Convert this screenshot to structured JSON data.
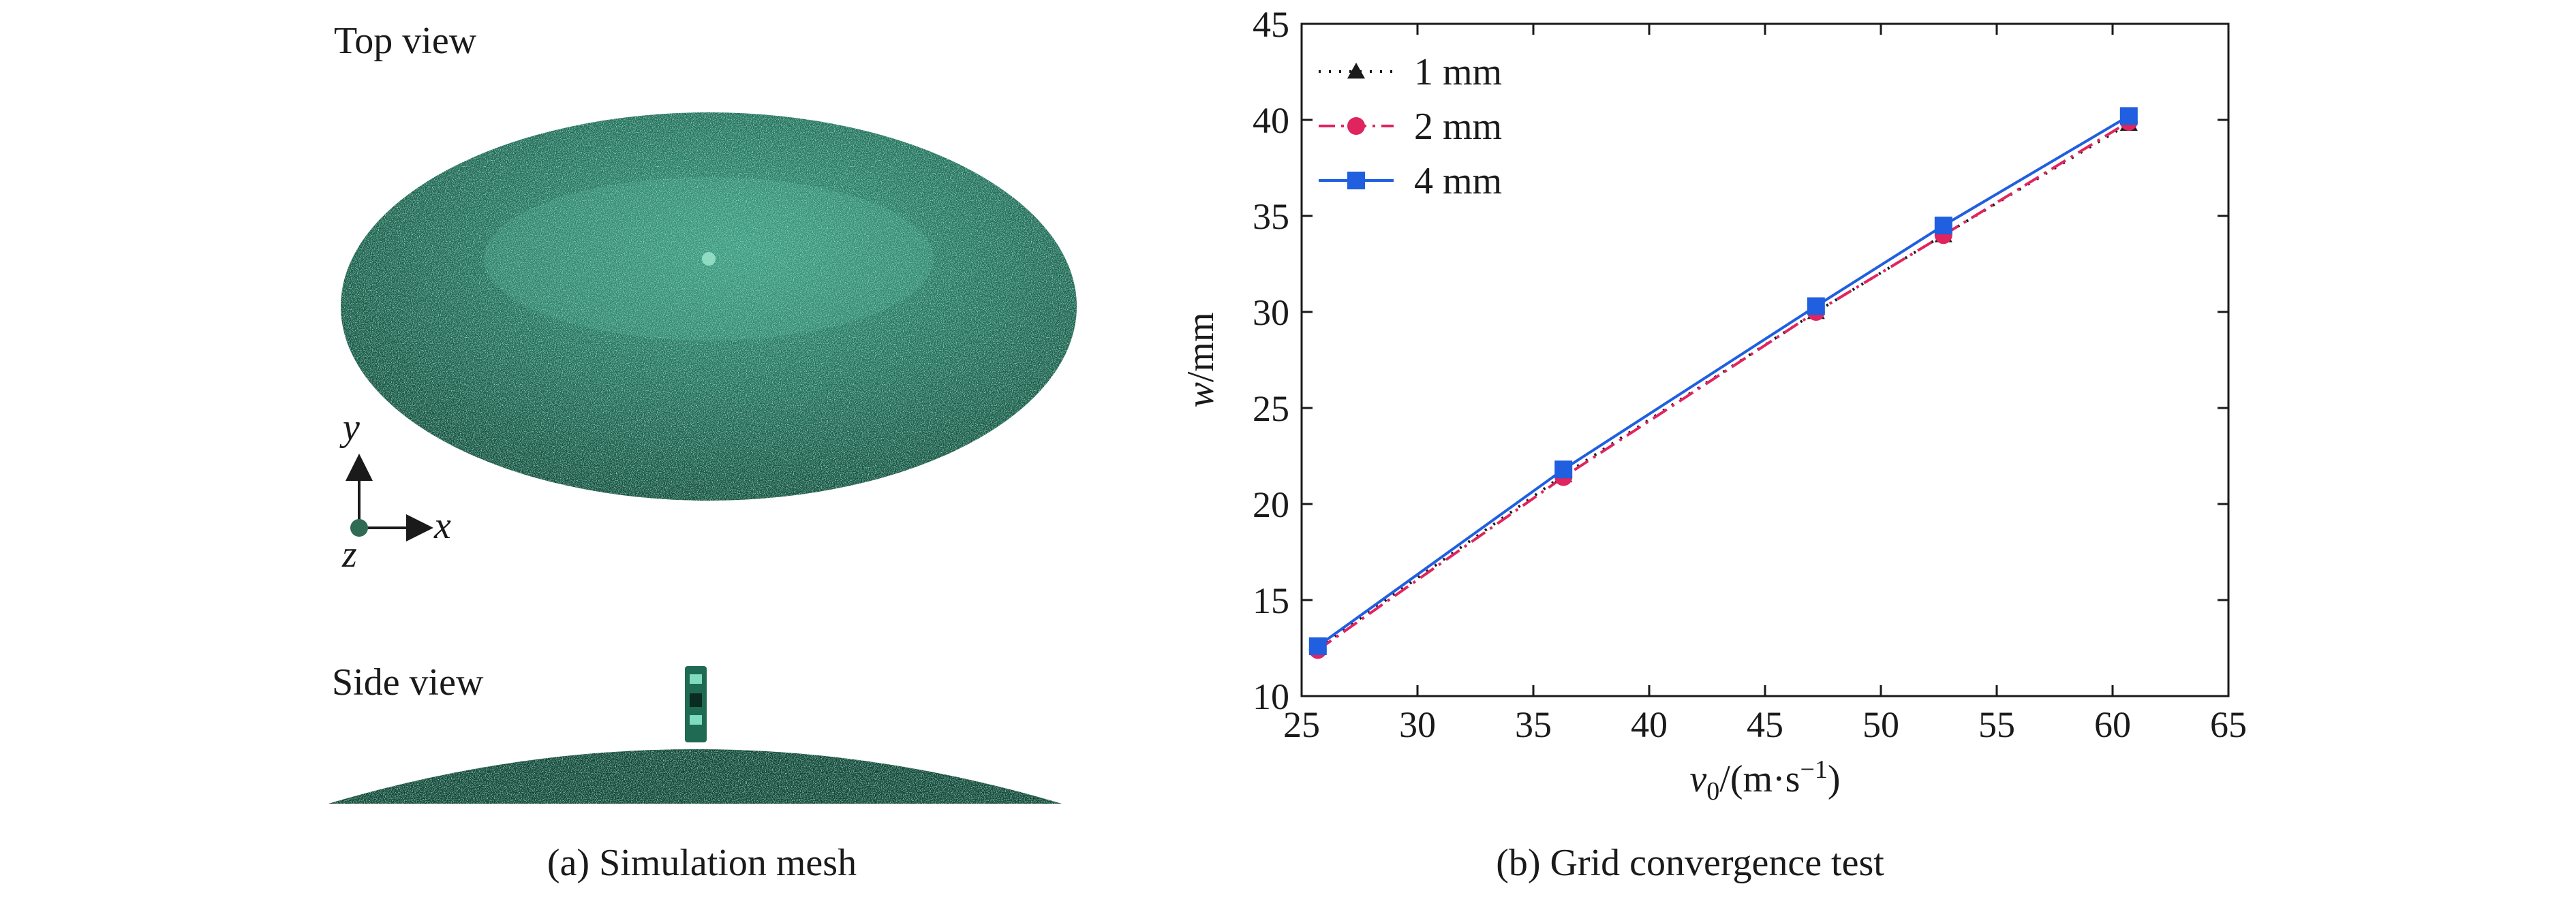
{
  "panel_a": {
    "top_view_label": "Top view",
    "side_view_label": "Side view",
    "axis_y": "y",
    "axis_x": "x",
    "axis_z": "z",
    "caption": "(a) Simulation mesh",
    "mesh_colors": {
      "base": "#0f3f30",
      "light": "#5cc0a0",
      "mid": "#2f8d72"
    }
  },
  "panel_b": {
    "caption": "(b) Grid convergence test"
  },
  "chart_data": {
    "type": "line",
    "title": "",
    "xlabel_var": "v",
    "xlabel_sub": "0",
    "xlabel_unit": "/(m·s",
    "xlabel_sup": "−1",
    "xlabel_close": ")",
    "ylabel_var": "w",
    "ylabel_unit": "/mm",
    "xlim": [
      25,
      65
    ],
    "ylim": [
      10,
      45
    ],
    "xticks": [
      25,
      30,
      35,
      40,
      45,
      50,
      55,
      60,
      65
    ],
    "yticks": [
      10,
      15,
      20,
      25,
      30,
      35,
      40,
      45
    ],
    "grid": false,
    "legend_position": "top-left",
    "series": [
      {
        "name": "1 mm",
        "color": "#1a1a1a",
        "marker": "triangle",
        "dash": "dotted",
        "x": [
          25.7,
          36.3,
          47.2,
          52.7,
          60.7
        ],
        "y": [
          12.5,
          21.5,
          30.0,
          34.0,
          39.8
        ]
      },
      {
        "name": "2 mm",
        "color": "#e0245e",
        "marker": "circle",
        "dash": "dashdot",
        "x": [
          25.7,
          36.3,
          47.2,
          52.7,
          60.7
        ],
        "y": [
          12.4,
          21.4,
          30.0,
          34.0,
          39.9
        ]
      },
      {
        "name": "4 mm",
        "color": "#1f5fe0",
        "marker": "square",
        "dash": "solid",
        "x": [
          25.7,
          36.3,
          47.2,
          52.7,
          60.7
        ],
        "y": [
          12.6,
          21.8,
          30.3,
          34.5,
          40.2
        ]
      }
    ]
  }
}
